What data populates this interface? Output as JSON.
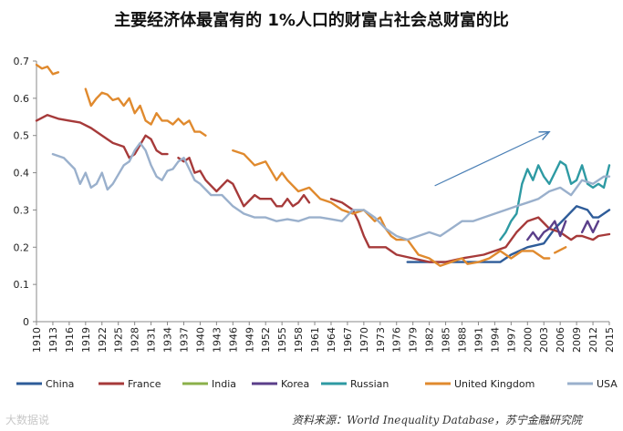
{
  "chart_data": {
    "type": "line",
    "title": "主要经济体最富有的 1%人口的财富占社会总财富的比",
    "source": "资料来源：World Inequality Database，苏宁金融研究院",
    "watermark": "大数据说",
    "ylim": [
      0,
      0.7
    ],
    "yticks": [
      "0",
      "0.1",
      "0.2",
      "0.3",
      "0.4",
      "0.5",
      "0.6",
      "0.7"
    ],
    "xlim": [
      1910,
      2015
    ],
    "xticks": [
      "1910",
      "1913",
      "1916",
      "1919",
      "1922",
      "1925",
      "1928",
      "1931",
      "1934",
      "1937",
      "1940",
      "1943",
      "1946",
      "1949",
      "1952",
      "1955",
      "1958",
      "1961",
      "1964",
      "1967",
      "1970",
      "1973",
      "1976",
      "1979",
      "1982",
      "1985",
      "1988",
      "1991",
      "1994",
      "1997",
      "2000",
      "2003",
      "2006",
      "2009",
      "2012",
      "2015"
    ],
    "grid": false,
    "legend_position": "bottom",
    "annotation": "upward-arrow 1983-2004",
    "series": [
      {
        "name": "China",
        "color": "#2E5C99",
        "segments": [
          [
            [
              1978,
              0.16
            ],
            [
              1982,
              0.16
            ],
            [
              1986,
              0.16
            ],
            [
              1990,
              0.16
            ],
            [
              1994,
              0.16
            ],
            [
              1995,
              0.16
            ],
            [
              1997,
              0.18
            ],
            [
              2000,
              0.2
            ],
            [
              2003,
              0.21
            ],
            [
              2005,
              0.25
            ],
            [
              2007,
              0.28
            ],
            [
              2009,
              0.31
            ],
            [
              2011,
              0.3
            ],
            [
              2012,
              0.28
            ],
            [
              2013,
              0.28
            ],
            [
              2015,
              0.3
            ]
          ]
        ]
      },
      {
        "name": "France",
        "color": "#A63A3A",
        "segments": [
          [
            [
              1910,
              0.54
            ],
            [
              1912,
              0.555
            ],
            [
              1914,
              0.545
            ],
            [
              1916,
              0.54
            ],
            [
              1918,
              0.535
            ],
            [
              1920,
              0.52
            ],
            [
              1922,
              0.5
            ],
            [
              1924,
              0.48
            ],
            [
              1926,
              0.47
            ],
            [
              1927,
              0.44
            ],
            [
              1928,
              0.45
            ],
            [
              1930,
              0.5
            ],
            [
              1931,
              0.49
            ],
            [
              1932,
              0.46
            ],
            [
              1933,
              0.45
            ],
            [
              1934,
              0.45
            ]
          ],
          [
            [
              1936,
              0.44
            ],
            [
              1937,
              0.43
            ],
            [
              1938,
              0.44
            ],
            [
              1939,
              0.4
            ],
            [
              1940,
              0.405
            ],
            [
              1941,
              0.38
            ],
            [
              1943,
              0.35
            ],
            [
              1945,
              0.38
            ],
            [
              1946,
              0.37
            ],
            [
              1947,
              0.34
            ],
            [
              1948,
              0.31
            ],
            [
              1950,
              0.34
            ],
            [
              1951,
              0.33
            ],
            [
              1953,
              0.33
            ],
            [
              1954,
              0.31
            ],
            [
              1955,
              0.31
            ],
            [
              1956,
              0.33
            ],
            [
              1957,
              0.31
            ],
            [
              1958,
              0.32
            ],
            [
              1959,
              0.34
            ],
            [
              1960,
              0.32
            ]
          ],
          [
            [
              1964,
              0.33
            ],
            [
              1966,
              0.32
            ],
            [
              1968,
              0.3
            ],
            [
              1969,
              0.27
            ],
            [
              1970,
              0.23
            ],
            [
              1971,
              0.2
            ],
            [
              1974,
              0.2
            ],
            [
              1976,
              0.18
            ],
            [
              1979,
              0.17
            ],
            [
              1982,
              0.16
            ],
            [
              1985,
              0.16
            ],
            [
              1988,
              0.17
            ],
            [
              1990,
              0.175
            ],
            [
              1992,
              0.18
            ],
            [
              1994,
              0.19
            ],
            [
              1996,
              0.2
            ],
            [
              1998,
              0.24
            ],
            [
              2000,
              0.27
            ],
            [
              2002,
              0.28
            ],
            [
              2004,
              0.25
            ],
            [
              2006,
              0.24
            ],
            [
              2008,
              0.22
            ],
            [
              2009,
              0.23
            ],
            [
              2010,
              0.23
            ],
            [
              2012,
              0.22
            ],
            [
              2013,
              0.23
            ],
            [
              2015,
              0.235
            ]
          ]
        ]
      },
      {
        "name": "India",
        "color": "#8BB04A",
        "segments": []
      },
      {
        "name": "Korea",
        "color": "#5B3F8A",
        "segments": [
          [
            [
              2000,
              0.22
            ],
            [
              2001,
              0.24
            ],
            [
              2002,
              0.22
            ],
            [
              2003,
              0.24
            ],
            [
              2004,
              0.25
            ],
            [
              2005,
              0.27
            ],
            [
              2006,
              0.23
            ],
            [
              2007,
              0.27
            ]
          ],
          [
            [
              2010,
              0.24
            ],
            [
              2011,
              0.27
            ],
            [
              2012,
              0.24
            ],
            [
              2013,
              0.27
            ]
          ]
        ]
      },
      {
        "name": "Russian",
        "color": "#2E9AA3",
        "segments": [
          [
            [
              1995,
              0.22
            ],
            [
              1996,
              0.24
            ],
            [
              1997,
              0.27
            ],
            [
              1998,
              0.29
            ],
            [
              1999,
              0.37
            ],
            [
              2000,
              0.41
            ],
            [
              2001,
              0.38
            ],
            [
              2002,
              0.42
            ],
            [
              2003,
              0.39
            ],
            [
              2004,
              0.37
            ],
            [
              2005,
              0.4
            ],
            [
              2006,
              0.43
            ],
            [
              2007,
              0.42
            ],
            [
              2008,
              0.37
            ],
            [
              2009,
              0.38
            ],
            [
              2010,
              0.42
            ],
            [
              2011,
              0.37
            ],
            [
              2012,
              0.36
            ],
            [
              2013,
              0.37
            ],
            [
              2014,
              0.36
            ],
            [
              2015,
              0.42
            ]
          ]
        ]
      },
      {
        "name": "United Kingdom",
        "color": "#E08A2E",
        "segments": [
          [
            [
              1910,
              0.69
            ],
            [
              1911,
              0.68
            ],
            [
              1912,
              0.685
            ],
            [
              1913,
              0.665
            ],
            [
              1914,
              0.67
            ]
          ],
          [
            [
              1919,
              0.625
            ],
            [
              1920,
              0.58
            ],
            [
              1921,
              0.6
            ],
            [
              1922,
              0.615
            ],
            [
              1923,
              0.61
            ],
            [
              1924,
              0.595
            ],
            [
              1925,
              0.6
            ],
            [
              1926,
              0.58
            ],
            [
              1927,
              0.6
            ],
            [
              1928,
              0.56
            ],
            [
              1929,
              0.58
            ],
            [
              1930,
              0.54
            ],
            [
              1931,
              0.53
            ],
            [
              1932,
              0.56
            ],
            [
              1933,
              0.54
            ],
            [
              1934,
              0.54
            ],
            [
              1935,
              0.53
            ],
            [
              1936,
              0.545
            ],
            [
              1937,
              0.53
            ],
            [
              1938,
              0.54
            ],
            [
              1939,
              0.51
            ],
            [
              1940,
              0.51
            ],
            [
              1941,
              0.5
            ]
          ],
          [
            [
              1946,
              0.46
            ],
            [
              1948,
              0.45
            ],
            [
              1950,
              0.42
            ],
            [
              1952,
              0.43
            ],
            [
              1954,
              0.38
            ],
            [
              1955,
              0.4
            ],
            [
              1956,
              0.38
            ],
            [
              1958,
              0.35
            ],
            [
              1960,
              0.36
            ],
            [
              1962,
              0.33
            ],
            [
              1964,
              0.32
            ],
            [
              1966,
              0.3
            ],
            [
              1968,
              0.29
            ],
            [
              1970,
              0.3
            ],
            [
              1972,
              0.27
            ],
            [
              1973,
              0.28
            ],
            [
              1974,
              0.25
            ],
            [
              1975,
              0.23
            ],
            [
              1976,
              0.22
            ],
            [
              1978,
              0.22
            ],
            [
              1979,
              0.2
            ],
            [
              1980,
              0.18
            ],
            [
              1982,
              0.17
            ],
            [
              1984,
              0.15
            ],
            [
              1986,
              0.16
            ],
            [
              1988,
              0.17
            ],
            [
              1989,
              0.155
            ],
            [
              1991,
              0.16
            ],
            [
              1993,
              0.17
            ],
            [
              1995,
              0.19
            ],
            [
              1997,
              0.17
            ],
            [
              1999,
              0.19
            ],
            [
              2001,
              0.19
            ],
            [
              2003,
              0.17
            ],
            [
              2004,
              0.17
            ]
          ],
          [
            [
              2005,
              0.185
            ],
            [
              2007,
              0.2
            ]
          ]
        ]
      },
      {
        "name": "USA",
        "color": "#9AB0CC",
        "segments": [
          [
            [
              1913,
              0.45
            ],
            [
              1915,
              0.44
            ],
            [
              1917,
              0.41
            ],
            [
              1918,
              0.37
            ],
            [
              1919,
              0.4
            ],
            [
              1920,
              0.36
            ],
            [
              1921,
              0.37
            ],
            [
              1922,
              0.4
            ],
            [
              1923,
              0.355
            ],
            [
              1924,
              0.37
            ],
            [
              1926,
              0.42
            ],
            [
              1927,
              0.43
            ],
            [
              1928,
              0.46
            ],
            [
              1929,
              0.48
            ],
            [
              1930,
              0.46
            ],
            [
              1931,
              0.42
            ],
            [
              1932,
              0.39
            ],
            [
              1933,
              0.38
            ],
            [
              1934,
              0.405
            ],
            [
              1935,
              0.41
            ],
            [
              1936,
              0.43
            ],
            [
              1937,
              0.44
            ],
            [
              1938,
              0.41
            ],
            [
              1939,
              0.38
            ],
            [
              1940,
              0.37
            ],
            [
              1942,
              0.34
            ],
            [
              1944,
              0.34
            ],
            [
              1946,
              0.31
            ],
            [
              1948,
              0.29
            ],
            [
              1950,
              0.28
            ],
            [
              1952,
              0.28
            ],
            [
              1954,
              0.27
            ],
            [
              1956,
              0.275
            ],
            [
              1958,
              0.27
            ],
            [
              1960,
              0.28
            ],
            [
              1962,
              0.28
            ],
            [
              1964,
              0.275
            ],
            [
              1966,
              0.27
            ],
            [
              1968,
              0.3
            ],
            [
              1970,
              0.3
            ],
            [
              1972,
              0.28
            ],
            [
              1974,
              0.25
            ],
            [
              1976,
              0.23
            ],
            [
              1978,
              0.22
            ],
            [
              1980,
              0.23
            ],
            [
              1982,
              0.24
            ],
            [
              1984,
              0.23
            ],
            [
              1986,
              0.25
            ],
            [
              1988,
              0.27
            ],
            [
              1990,
              0.27
            ],
            [
              1992,
              0.28
            ],
            [
              1994,
              0.29
            ],
            [
              1996,
              0.3
            ],
            [
              1998,
              0.31
            ],
            [
              2000,
              0.32
            ],
            [
              2002,
              0.33
            ],
            [
              2004,
              0.35
            ],
            [
              2006,
              0.36
            ],
            [
              2008,
              0.34
            ],
            [
              2010,
              0.38
            ],
            [
              2012,
              0.37
            ],
            [
              2014,
              0.39
            ],
            [
              2015,
              0.39
            ]
          ]
        ]
      }
    ]
  }
}
